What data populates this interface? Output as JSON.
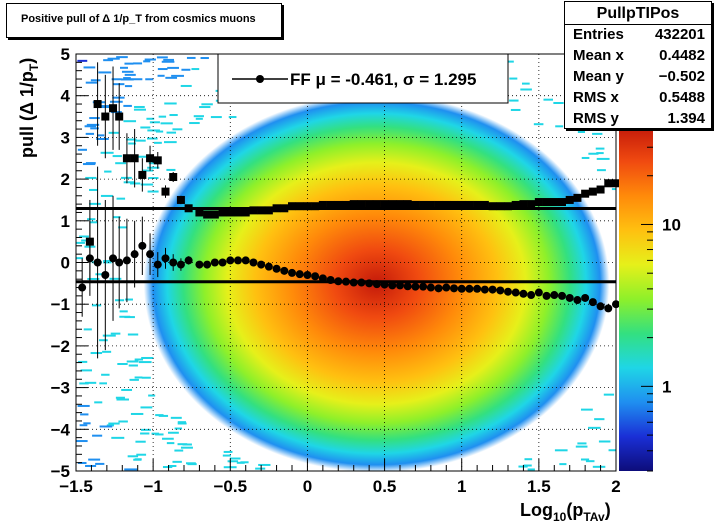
{
  "title": "Positive pull of Δ 1/p_T from cosmics muons",
  "stats": {
    "name": "PullpTIPos",
    "rows": [
      {
        "key": "Entries",
        "value": "432201"
      },
      {
        "key": "Mean x",
        "value": "0.4482"
      },
      {
        "key": "Mean y",
        "value": "−0.502"
      },
      {
        "key": "RMS x",
        "value": "0.5488"
      },
      {
        "key": "RMS y",
        "value": "1.394"
      }
    ]
  },
  "legend": {
    "label": "FF μ = -0.461, σ =   1.295"
  },
  "colors": {
    "frame": "#000000",
    "grid": "#000000",
    "markers": "#000000",
    "palette": [
      "#0d0d7a",
      "#1a2fd6",
      "#1f8ff0",
      "#1fd6e6",
      "#33e080",
      "#8ef02a",
      "#e6f01a",
      "#ffc010",
      "#ff8a0a",
      "#f04a10",
      "#c41a0a"
    ]
  },
  "chart_data": {
    "type": "heatmap",
    "xlabel": "Log_10(p_TAv)",
    "ylabel": "pull (Δ 1/p_T)",
    "xlim": [
      -1.5,
      2
    ],
    "ylim": [
      -5,
      5
    ],
    "xticks": [
      "−1.5",
      "−1",
      "−0.5",
      "0",
      "0.5",
      "1",
      "1.5",
      "2"
    ],
    "yticks": [
      "−5",
      "−4",
      "−3",
      "−2",
      "−1",
      "0",
      "1",
      "2",
      "3",
      "4",
      "5"
    ],
    "x_tick_values": [
      -1.5,
      -1,
      -0.5,
      0,
      0.5,
      1,
      1.5,
      2
    ],
    "y_tick_values": [
      -5,
      -4,
      -3,
      -2,
      -1,
      0,
      1,
      2,
      3,
      4,
      5
    ],
    "grid": true,
    "log_z": true,
    "colorbar_ticks": [
      "1",
      "10"
    ],
    "colorbar_tick_values": [
      1,
      10
    ],
    "zlim": [
      0.3,
      40
    ],
    "density_center": {
      "x": 0.4482,
      "y": -0.502
    },
    "density_rms": {
      "x": 0.5488,
      "y": 1.394
    },
    "fit_lines": {
      "mean": -0.461,
      "sigma": 1.295
    },
    "series": [
      {
        "name": "FF",
        "marker": "circle",
        "x": [
          -1.46,
          -1.41,
          -1.36,
          -1.31,
          -1.26,
          -1.22,
          -1.17,
          -1.12,
          -1.07,
          -1.02,
          -0.97,
          -0.92,
          -0.87,
          -0.82,
          -0.77,
          -0.7,
          -0.65,
          -0.6,
          -0.55,
          -0.5,
          -0.45,
          -0.4,
          -0.35,
          -0.3,
          -0.25,
          -0.2,
          -0.15,
          -0.1,
          -0.05,
          0.0,
          0.05,
          0.1,
          0.15,
          0.2,
          0.25,
          0.3,
          0.35,
          0.4,
          0.45,
          0.5,
          0.55,
          0.6,
          0.65,
          0.7,
          0.75,
          0.8,
          0.85,
          0.9,
          0.95,
          1.0,
          1.05,
          1.1,
          1.15,
          1.2,
          1.25,
          1.3,
          1.35,
          1.4,
          1.45,
          1.5,
          1.55,
          1.6,
          1.65,
          1.7,
          1.75,
          1.8,
          1.85,
          1.9,
          1.95,
          2.0
        ],
        "y": [
          -0.6,
          0.1,
          0.0,
          -0.3,
          0.1,
          0.0,
          0.05,
          0.2,
          0.4,
          0.2,
          -0.05,
          0.1,
          0.0,
          -0.05,
          0.05,
          -0.05,
          -0.05,
          0.0,
          0.0,
          0.05,
          0.05,
          0.05,
          0.0,
          -0.05,
          -0.1,
          -0.15,
          -0.2,
          -0.25,
          -0.28,
          -0.3,
          -0.33,
          -0.38,
          -0.42,
          -0.45,
          -0.46,
          -0.48,
          -0.48,
          -0.5,
          -0.52,
          -0.53,
          -0.55,
          -0.55,
          -0.57,
          -0.58,
          -0.58,
          -0.6,
          -0.62,
          -0.6,
          -0.62,
          -0.63,
          -0.63,
          -0.63,
          -0.65,
          -0.65,
          -0.67,
          -0.7,
          -0.72,
          -0.75,
          -0.78,
          -0.72,
          -0.8,
          -0.78,
          -0.8,
          -0.85,
          -0.9,
          -0.85,
          -0.95,
          -1.05,
          -1.1,
          -1.0
        ],
        "yerr": [
          0.7,
          0.9,
          2.3,
          1.8,
          1.5,
          1.1,
          1.0,
          0.8,
          0.7,
          0.5,
          0.3,
          0.25,
          0.2,
          0.15,
          0.1,
          0.08,
          0.06,
          0.05,
          0.04,
          0.03,
          0.03,
          0.03,
          0.02,
          0.02,
          0.02,
          0.02,
          0.02,
          0.02,
          0.02,
          0.02,
          0.02,
          0.02,
          0.02,
          0.02,
          0.02,
          0.02,
          0.02,
          0.02,
          0.02,
          0.02,
          0.02,
          0.02,
          0.02,
          0.02,
          0.02,
          0.02,
          0.02,
          0.02,
          0.02,
          0.02,
          0.02,
          0.02,
          0.02,
          0.02,
          0.02,
          0.02,
          0.02,
          0.02,
          0.02,
          0.02,
          0.02,
          0.02,
          0.03,
          0.03,
          0.03,
          0.04,
          0.05,
          0.06,
          0.08,
          0.1
        ]
      },
      {
        "marker": "square",
        "x": [
          -1.41,
          -1.36,
          -1.31,
          -1.26,
          -1.22,
          -1.17,
          -1.12,
          -1.07,
          -1.02,
          -0.97,
          -0.92,
          -0.87,
          -0.82,
          -0.77,
          -0.7,
          -0.65,
          -0.6,
          -0.55,
          -0.5,
          -0.45,
          -0.4,
          -0.35,
          -0.3,
          -0.25,
          -0.2,
          -0.15,
          -0.1,
          -0.05,
          0.0,
          0.05,
          0.1,
          0.15,
          0.2,
          0.25,
          0.3,
          0.35,
          0.4,
          0.45,
          0.5,
          0.55,
          0.6,
          0.65,
          0.7,
          0.75,
          0.8,
          0.85,
          0.9,
          0.95,
          1.0,
          1.05,
          1.1,
          1.15,
          1.2,
          1.25,
          1.3,
          1.35,
          1.4,
          1.45,
          1.5,
          1.55,
          1.6,
          1.65,
          1.7,
          1.75,
          1.8,
          1.85,
          1.9,
          1.95,
          2.0
        ],
        "y": [
          0.5,
          3.8,
          3.5,
          3.7,
          3.5,
          2.5,
          2.5,
          2.1,
          2.5,
          2.45,
          1.7,
          2.05,
          1.5,
          1.3,
          1.2,
          1.15,
          1.15,
          1.2,
          1.2,
          1.2,
          1.2,
          1.25,
          1.25,
          1.25,
          1.3,
          1.3,
          1.35,
          1.35,
          1.35,
          1.35,
          1.38,
          1.38,
          1.38,
          1.38,
          1.4,
          1.4,
          1.4,
          1.4,
          1.4,
          1.4,
          1.4,
          1.4,
          1.38,
          1.38,
          1.38,
          1.38,
          1.38,
          1.38,
          1.38,
          1.38,
          1.38,
          1.38,
          1.35,
          1.35,
          1.35,
          1.38,
          1.4,
          1.4,
          1.45,
          1.45,
          1.45,
          1.45,
          1.5,
          1.55,
          1.65,
          1.7,
          1.75,
          1.9,
          1.9
        ],
        "yerr": [
          1.0,
          1.0,
          1.0,
          1.0,
          0.8,
          0.6,
          0.7,
          0.4,
          0.3,
          0.2,
          0.15,
          0.12,
          0.1,
          0.08,
          0.06,
          0.05,
          0.04,
          0.03,
          0.03,
          0.03,
          0.02,
          0.02,
          0.02,
          0.02,
          0.02,
          0.02,
          0.02,
          0.02,
          0.02,
          0.02,
          0.02,
          0.02,
          0.02,
          0.02,
          0.02,
          0.02,
          0.02,
          0.02,
          0.02,
          0.02,
          0.02,
          0.02,
          0.02,
          0.02,
          0.02,
          0.02,
          0.02,
          0.02,
          0.02,
          0.02,
          0.02,
          0.02,
          0.02,
          0.02,
          0.02,
          0.02,
          0.02,
          0.02,
          0.02,
          0.02,
          0.02,
          0.02,
          0.03,
          0.03,
          0.04,
          0.05,
          0.06,
          0.08,
          0.1
        ]
      }
    ]
  }
}
